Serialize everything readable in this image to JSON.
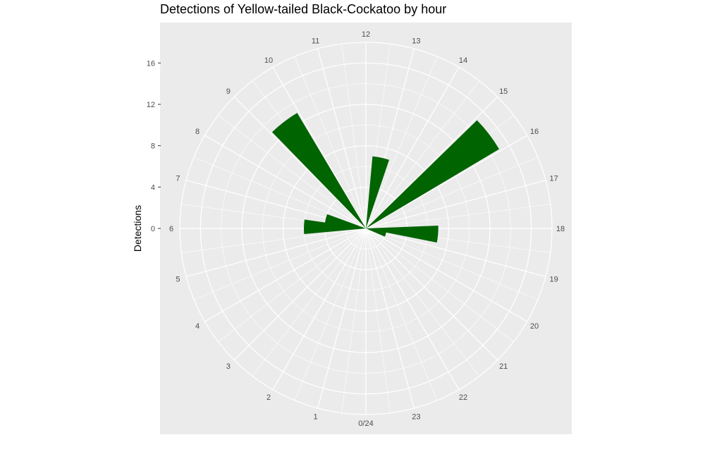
{
  "chart_data": {
    "type": "bar",
    "coord": "polar",
    "title": "Detections of Yellow-tailed Black-Cockatoo by hour",
    "ylabel": "Detections",
    "xlabel": "",
    "categories": [
      "0/24",
      "1",
      "2",
      "3",
      "4",
      "5",
      "6",
      "7",
      "8",
      "9",
      "10",
      "11",
      "12",
      "13",
      "14",
      "15",
      "16",
      "17",
      "18",
      "19",
      "20",
      "21",
      "22",
      "23"
    ],
    "values": [
      0,
      0,
      0,
      0,
      0,
      0,
      0,
      0,
      0,
      0,
      0,
      0,
      0,
      0,
      0,
      0,
      0,
      0,
      0,
      0,
      0,
      0,
      0,
      0
    ],
    "bars": [
      {
        "hour": 6.1,
        "value": 6
      },
      {
        "hour": 6.9,
        "value": 4
      },
      {
        "hour": 9.5,
        "value": 13
      },
      {
        "hour": 12.8,
        "value": 7
      },
      {
        "hour": 15.5,
        "value": 15
      },
      {
        "hour": 18.3,
        "value": 7
      },
      {
        "hour": 19.1,
        "value": 2
      }
    ],
    "y_ticks": [
      0,
      4,
      8,
      12,
      16
    ],
    "ylim": [
      0,
      18
    ],
    "grid": true,
    "bar_color": "#006400",
    "panel_color": "#ebebeb",
    "grid_color": "#ffffff"
  }
}
